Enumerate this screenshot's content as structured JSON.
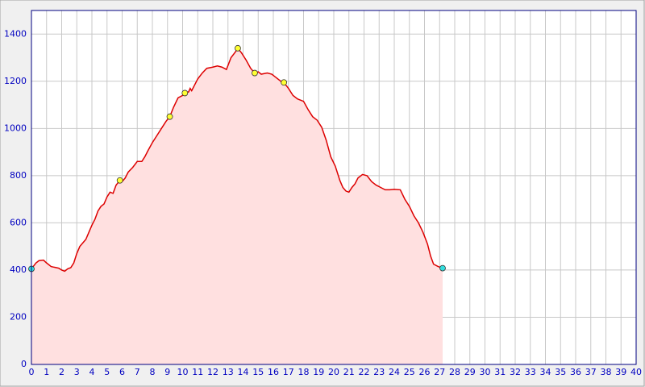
{
  "chart_data": {
    "type": "area",
    "x": [
      0,
      0.3,
      0.5,
      0.8,
      1.0,
      1.3,
      1.5,
      1.8,
      2.0,
      2.2,
      2.4,
      2.6,
      2.8,
      3.0,
      3.2,
      3.4,
      3.6,
      3.8,
      4.0,
      4.2,
      4.4,
      4.6,
      4.8,
      5.0,
      5.2,
      5.4,
      5.6,
      5.85,
      6.0,
      6.2,
      6.4,
      6.7,
      7.0,
      7.3,
      7.5,
      7.7,
      8.0,
      8.3,
      8.6,
      8.9,
      9.15,
      9.4,
      9.7,
      10.0,
      10.15,
      10.4,
      10.5,
      10.6,
      10.8,
      11.0,
      11.3,
      11.6,
      12.0,
      12.3,
      12.6,
      12.9,
      13.2,
      13.5,
      13.65,
      13.9,
      14.2,
      14.5,
      14.77,
      15.0,
      15.2,
      15.6,
      15.9,
      16.2,
      16.5,
      16.7,
      17.0,
      17.3,
      17.6,
      18.0,
      18.3,
      18.6,
      18.9,
      19.2,
      19.5,
      19.8,
      20.1,
      20.4,
      20.6,
      20.8,
      21.0,
      21.2,
      21.4,
      21.6,
      21.9,
      22.2,
      22.5,
      22.8,
      23.1,
      23.4,
      23.7,
      24.0,
      24.4,
      24.7,
      25.0,
      25.3,
      25.6,
      25.9,
      26.2,
      26.4,
      26.6,
      26.9,
      27.2
    ],
    "values": [
      405,
      430,
      440,
      442,
      430,
      415,
      412,
      408,
      400,
      395,
      405,
      410,
      430,
      470,
      500,
      515,
      530,
      560,
      590,
      615,
      650,
      670,
      680,
      710,
      730,
      725,
      760,
      780,
      775,
      790,
      815,
      835,
      860,
      860,
      880,
      905,
      940,
      970,
      1000,
      1030,
      1050,
      1090,
      1130,
      1140,
      1150,
      1155,
      1170,
      1160,
      1185,
      1210,
      1235,
      1255,
      1260,
      1265,
      1260,
      1250,
      1300,
      1325,
      1340,
      1320,
      1290,
      1255,
      1235,
      1240,
      1230,
      1235,
      1230,
      1215,
      1200,
      1195,
      1170,
      1140,
      1125,
      1115,
      1080,
      1050,
      1035,
      1005,
      950,
      880,
      840,
      780,
      750,
      735,
      730,
      750,
      765,
      790,
      805,
      800,
      775,
      760,
      750,
      740,
      740,
      742,
      740,
      700,
      670,
      630,
      600,
      560,
      510,
      460,
      425,
      415,
      408
    ],
    "color": "#dd0000",
    "fill_color": "#ffe0e0",
    "markers": [
      {
        "color": "#ffff33",
        "x": [
          5.85,
          9.15,
          10.15,
          13.65,
          14.77,
          16.7
        ],
        "values": [
          780,
          1050,
          1150,
          1340,
          1235,
          1195
        ]
      },
      {
        "color": "#33dddd",
        "x": [
          0,
          27.2
        ],
        "values": [
          405,
          408
        ]
      }
    ],
    "xlim": [
      0,
      40
    ],
    "ylim": [
      0,
      1500
    ],
    "xticks": [
      0,
      1,
      2,
      3,
      4,
      5,
      6,
      7,
      8,
      9,
      10,
      11,
      12,
      13,
      14,
      15,
      16,
      17,
      18,
      19,
      20,
      21,
      22,
      23,
      24,
      25,
      26,
      27,
      28,
      29,
      30,
      31,
      32,
      33,
      34,
      35,
      36,
      37,
      38,
      39,
      40
    ],
    "yticks": [
      0,
      200,
      400,
      600,
      800,
      1000,
      1200,
      1400
    ],
    "grid": true
  }
}
